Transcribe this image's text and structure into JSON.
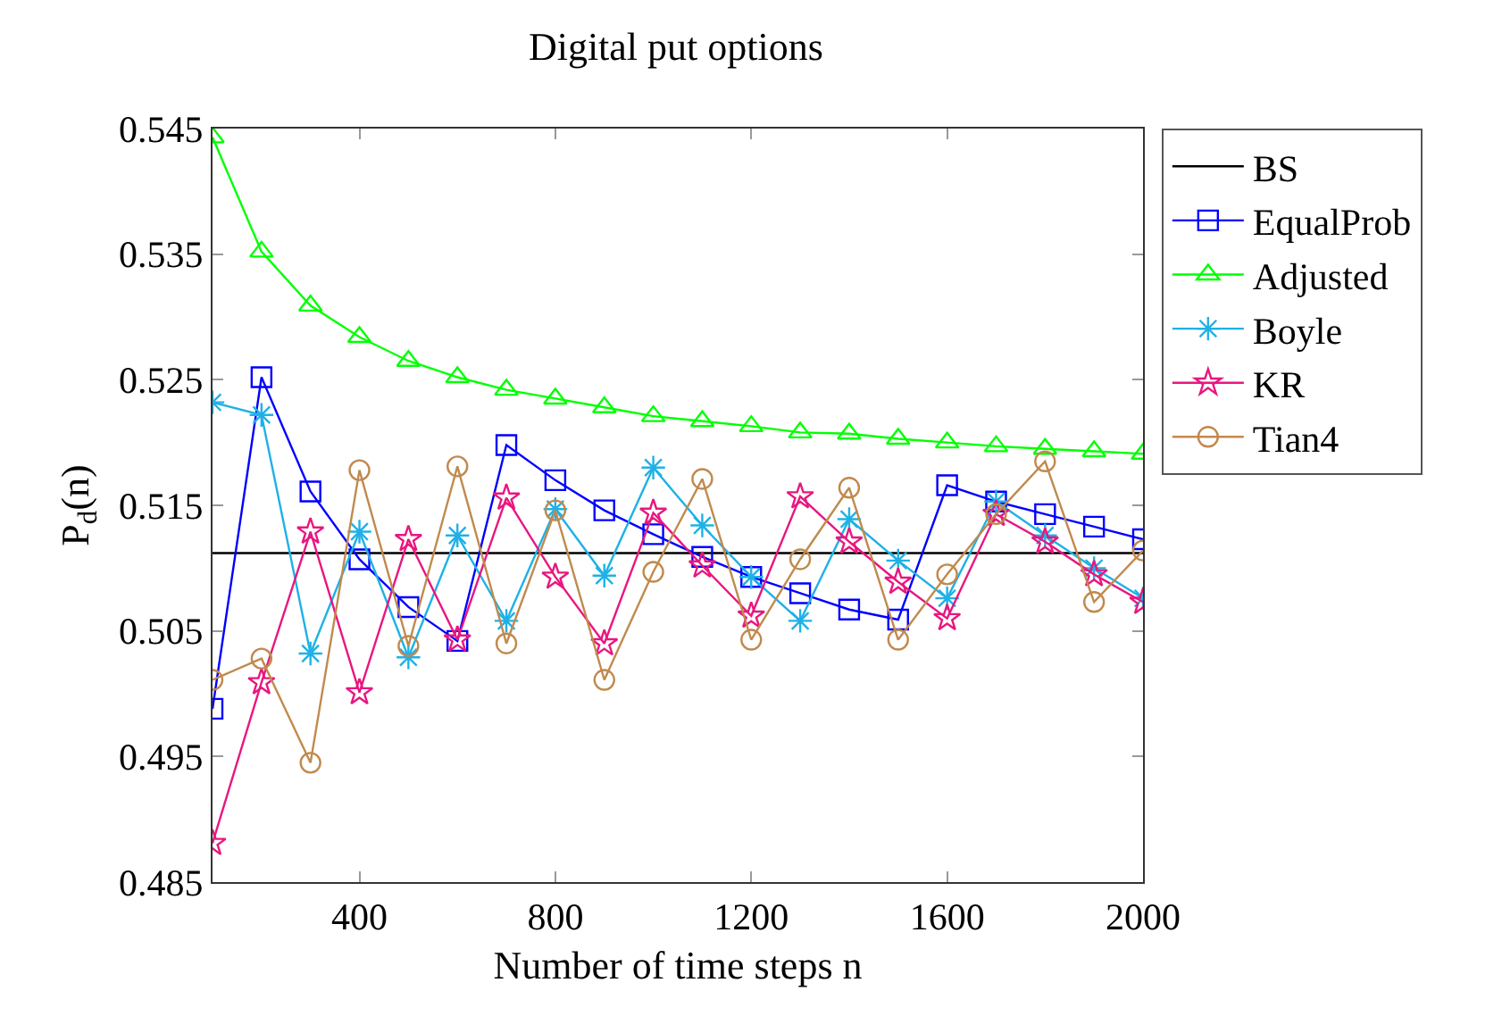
{
  "chart_data": {
    "type": "line",
    "title": "Digital put options",
    "xlabel": "Number of time steps n",
    "ylabel": "P$_{d}$(n)",
    "x": [
      100,
      200,
      300,
      400,
      500,
      600,
      700,
      800,
      900,
      1000,
      1100,
      1200,
      1300,
      1400,
      1500,
      1600,
      1700,
      1800,
      1900,
      2000
    ],
    "series": [
      {
        "name": "BS",
        "color": "#000000",
        "marker": "none",
        "x": [
          100,
          2000
        ],
        "values": [
          0.5112,
          0.5112
        ]
      },
      {
        "name": "EqualProb",
        "color": "#0000ff",
        "marker": "square",
        "values": [
          0.4988,
          0.5252,
          0.5161,
          0.5107,
          0.5069,
          0.5042,
          0.5198,
          0.517,
          0.5146,
          0.5127,
          0.5109,
          0.5093,
          0.508,
          0.5067,
          0.5059,
          0.5166,
          0.5153,
          0.5143,
          0.5133,
          0.5123
        ]
      },
      {
        "name": "Adjusted",
        "color": "#00ff00",
        "marker": "triangle",
        "values": [
          0.5443,
          0.5352,
          0.5309,
          0.5284,
          0.5265,
          0.5252,
          0.5242,
          0.5235,
          0.5228,
          0.5221,
          0.5217,
          0.5213,
          0.5208,
          0.5207,
          0.5203,
          0.52,
          0.5197,
          0.5195,
          0.5193,
          0.5191
        ]
      },
      {
        "name": "Boyle",
        "color": "#1fb1e6",
        "marker": "cross",
        "values": [
          0.5232,
          0.5222,
          0.5032,
          0.5129,
          0.5029,
          0.5126,
          0.5058,
          0.5147,
          0.5094,
          0.518,
          0.5134,
          0.5093,
          0.5058,
          0.5139,
          0.5106,
          0.5076,
          0.5153,
          0.5126,
          0.51,
          0.5076
        ]
      },
      {
        "name": "KR",
        "color": "#e8177f",
        "marker": "star",
        "values": [
          0.4881,
          0.5009,
          0.5129,
          0.5001,
          0.5123,
          0.5043,
          0.5156,
          0.5093,
          0.504,
          0.5144,
          0.5102,
          0.5062,
          0.5157,
          0.5121,
          0.5089,
          0.506,
          0.5143,
          0.5121,
          0.5095,
          0.5073
        ]
      },
      {
        "name": "Tian4",
        "color": "#c08a4e",
        "marker": "circle",
        "values": [
          0.5011,
          0.5028,
          0.4945,
          0.5178,
          0.5038,
          0.5181,
          0.504,
          0.5146,
          0.5011,
          0.5097,
          0.5171,
          0.5043,
          0.5107,
          0.5164,
          0.5043,
          0.5095,
          0.5143,
          0.5185,
          0.5073,
          0.5114
        ]
      }
    ],
    "xlim": [
      100,
      2000
    ],
    "xticks": [
      400,
      800,
      1200,
      1600,
      2000
    ],
    "ylim": [
      0.485,
      0.545
    ],
    "yticks": [
      0.485,
      0.495,
      0.505,
      0.515,
      0.525,
      0.535,
      0.545
    ],
    "legend": "top right",
    "line_style": "solid"
  }
}
